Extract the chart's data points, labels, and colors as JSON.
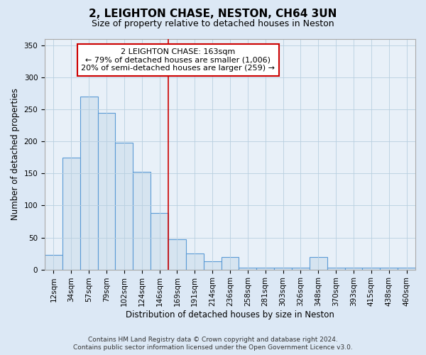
{
  "title": "2, LEIGHTON CHASE, NESTON, CH64 3UN",
  "subtitle": "Size of property relative to detached houses in Neston",
  "xlabel": "Distribution of detached houses by size in Neston",
  "ylabel": "Number of detached properties",
  "bar_labels": [
    "12sqm",
    "34sqm",
    "57sqm",
    "79sqm",
    "102sqm",
    "124sqm",
    "146sqm",
    "169sqm",
    "191sqm",
    "214sqm",
    "236sqm",
    "258sqm",
    "281sqm",
    "303sqm",
    "326sqm",
    "348sqm",
    "370sqm",
    "393sqm",
    "415sqm",
    "438sqm",
    "460sqm"
  ],
  "bar_heights": [
    23,
    175,
    270,
    245,
    198,
    153,
    88,
    47,
    25,
    13,
    20,
    3,
    3,
    3,
    3,
    20,
    3,
    3,
    3,
    3,
    3
  ],
  "bar_color": "#d6e4f0",
  "bar_edge_color": "#5b9bd5",
  "vline_x_label": "169sqm",
  "vline_color": "#cc0000",
  "annotation_line1": "2 LEIGHTON CHASE: 163sqm",
  "annotation_line2": "← 79% of detached houses are smaller (1,006)",
  "annotation_line3": "20% of semi-detached houses are larger (259) →",
  "annotation_box_color": "#ffffff",
  "annotation_box_edge_color": "#cc0000",
  "ylim": [
    0,
    360
  ],
  "yticks": [
    0,
    50,
    100,
    150,
    200,
    250,
    300,
    350
  ],
  "title_fontsize": 11,
  "subtitle_fontsize": 9,
  "axis_label_fontsize": 8.5,
  "tick_fontsize": 7.5,
  "annotation_fontsize": 8,
  "footer_fontsize": 6.5,
  "footer_line1": "Contains HM Land Registry data © Crown copyright and database right 2024.",
  "footer_line2": "Contains public sector information licensed under the Open Government Licence v3.0.",
  "background_color": "#dce8f5",
  "plot_bg_color": "#e8f0f8"
}
